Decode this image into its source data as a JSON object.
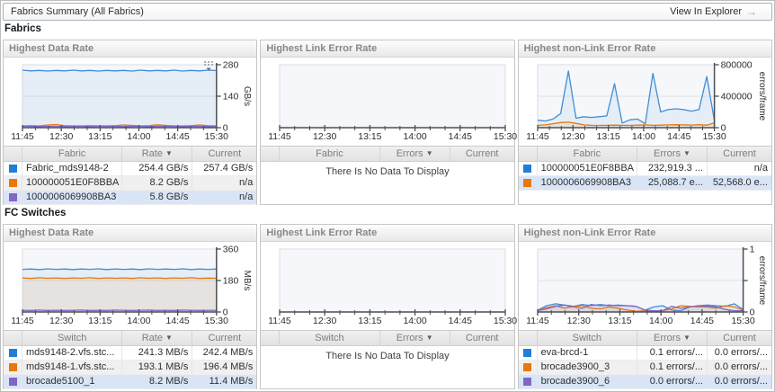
{
  "header": {
    "title": "Fabrics Summary (All Fabrics)",
    "action_label": "View In Explorer"
  },
  "icons": {
    "sort_desc": "▼",
    "explorer_arrow": "→"
  },
  "colors": {
    "blue": "#1f7fd6",
    "orange": "#e6780c",
    "purple": "#8166c6",
    "selected_row": "#d9e5f7"
  },
  "sections": [
    {
      "label": "Fabrics"
    },
    {
      "label": "FC Switches"
    }
  ],
  "panels": [
    {
      "title": "Highest Data Rate",
      "col_name": "Fabric",
      "col_value": "Rate",
      "col_current": "Current",
      "rows": [
        {
          "color": "#1f7fd6",
          "name": "Fabric_mds9148-2",
          "value": "254.4 GB/s",
          "current": "257.4 GB/s"
        },
        {
          "color": "#e6780c",
          "name": "100000051E0F8BBA",
          "value": "8.2 GB/s",
          "current": "n/a"
        },
        {
          "color": "#8166c6",
          "name": "1000006069908BA3",
          "value": "5.8 GB/s",
          "current": "n/a"
        }
      ]
    },
    {
      "title": "Highest Link Error Rate",
      "col_name": "Fabric",
      "col_value": "Errors",
      "col_current": "Current",
      "no_data": "There Is No Data To Display",
      "rows": []
    },
    {
      "title": "Highest non-Link Error Rate",
      "col_name": "Fabric",
      "col_value": "Errors",
      "col_current": "Current",
      "rows": [
        {
          "color": "#1f7fd6",
          "name": "100000051E0F8BBA",
          "value": "232,919.3 ...",
          "current": "n/a"
        },
        {
          "color": "#e6780c",
          "name": "1000006069908BA3",
          "value": "25,088.7 e...",
          "current": "52,568.0 e..."
        }
      ]
    },
    {
      "title": "Highest Data Rate",
      "col_name": "Switch",
      "col_value": "Rate",
      "col_current": "Current",
      "rows": [
        {
          "color": "#1f7fd6",
          "name": "mds9148-2.vfs.stc...",
          "value": "241.3 MB/s",
          "current": "242.4 MB/s"
        },
        {
          "color": "#e6780c",
          "name": "mds9148-1.vfs.stc...",
          "value": "193.1 MB/s",
          "current": "196.4 MB/s"
        },
        {
          "color": "#8166c6",
          "name": "brocade5100_1",
          "value": "8.2 MB/s",
          "current": "11.4 MB/s"
        }
      ]
    },
    {
      "title": "Highest Link Error Rate",
      "col_name": "Switch",
      "col_value": "Errors",
      "col_current": "Current",
      "no_data": "There Is No Data To Display",
      "rows": []
    },
    {
      "title": "Highest non-Link Error Rate",
      "col_name": "Switch",
      "col_value": "Errors",
      "col_current": "Current",
      "rows": [
        {
          "color": "#1f7fd6",
          "name": "eva-brcd-1",
          "value": "0.1 errors/...",
          "current": "0.0 errors/..."
        },
        {
          "color": "#e6780c",
          "name": "brocade3900_3",
          "value": "0.1 errors/...",
          "current": "0.0 errors/..."
        },
        {
          "color": "#8166c6",
          "name": "brocade3900_6",
          "value": "0.0 errors/...",
          "current": "0.0 errors/..."
        }
      ]
    }
  ],
  "chart_data": [
    {
      "type": "line",
      "title": "Highest Data Rate (Fabrics)",
      "x_labels": [
        "11:45",
        "12:30",
        "13:15",
        "14:00",
        "14:45",
        "15:30"
      ],
      "ylim": [
        0,
        280
      ],
      "yticks": [
        {
          "v": 0,
          "label": "0"
        },
        {
          "v": 140,
          "label": "140"
        },
        {
          "v": 280,
          "label": "280"
        }
      ],
      "ylabel": "GB/s",
      "grid": true,
      "legend": "table-below",
      "series": [
        {
          "name": "Fabric_mds9148-2",
          "color": "#3f8ed8",
          "values": [
            256,
            253,
            255,
            252,
            255,
            253,
            256,
            253,
            255,
            252,
            255,
            253,
            255,
            252,
            256,
            253,
            255,
            253,
            256,
            252,
            255,
            253,
            256,
            254
          ]
        },
        {
          "name": "100000051E0F8BBA",
          "color": "#e6780c",
          "values": [
            8,
            9,
            8,
            12,
            14,
            9,
            8,
            8,
            9,
            8,
            8,
            9,
            12,
            10,
            8,
            9,
            13,
            10,
            8,
            8,
            9,
            12,
            9,
            8
          ]
        },
        {
          "name": "1000006069908BA3",
          "color": "#8166c6",
          "values": [
            6,
            6,
            5,
            6,
            6,
            5,
            6,
            6,
            5,
            6,
            6,
            6,
            5,
            6,
            6,
            5,
            6,
            6,
            6,
            5,
            6,
            6,
            5,
            6
          ]
        }
      ]
    },
    {
      "type": "line",
      "title": "Highest Link Error Rate (Fabrics)",
      "x_labels": [
        "11:45",
        "12:30",
        "13:15",
        "14:00",
        "14:45",
        "15:30"
      ],
      "ylim": [
        0,
        1
      ],
      "yticks": [],
      "ylabel": "",
      "series": []
    },
    {
      "type": "line",
      "title": "Highest non-Link Error Rate (Fabrics)",
      "x_labels": [
        "11:45",
        "12:30",
        "13:15",
        "14:00",
        "14:45",
        "15:30"
      ],
      "ylim": [
        0,
        800000
      ],
      "yticks": [
        {
          "v": 0,
          "label": "0"
        },
        {
          "v": 400000,
          "label": "400000"
        },
        {
          "v": 800000,
          "label": "800000"
        }
      ],
      "ylabel": "errors/frame",
      "series": [
        {
          "name": "100000051E0F8BBA",
          "color": "#3f8ed8",
          "values": [
            95000,
            85000,
            110000,
            180000,
            720000,
            120000,
            140000,
            130000,
            140000,
            150000,
            560000,
            60000,
            100000,
            110000,
            50000,
            690000,
            200000,
            230000,
            240000,
            230000,
            210000,
            230000,
            650000,
            90000
          ]
        },
        {
          "name": "1000006069908BA3",
          "color": "#e6780c",
          "values": [
            30000,
            35000,
            50000,
            65000,
            70000,
            55000,
            35000,
            30000,
            28000,
            30000,
            32000,
            30000,
            28000,
            32000,
            35000,
            30000,
            32000,
            35000,
            38000,
            35000,
            33000,
            38000,
            32000,
            60000
          ]
        }
      ]
    },
    {
      "type": "line",
      "title": "Highest Data Rate (FC Switches)",
      "x_labels": [
        "11:45",
        "12:30",
        "13:15",
        "14:00",
        "14:45",
        "15:30"
      ],
      "ylim": [
        0,
        360
      ],
      "yticks": [
        {
          "v": 0,
          "label": "0"
        },
        {
          "v": 180,
          "label": "180"
        },
        {
          "v": 360,
          "label": "360"
        }
      ],
      "ylabel": "MB/s",
      "series": [
        {
          "name": "mds9148-2.vfs.stc...",
          "color": "#3f8ed8",
          "values": [
            244,
            246,
            243,
            247,
            244,
            246,
            243,
            246,
            244,
            247,
            243,
            246,
            244,
            246,
            243,
            247,
            244,
            246,
            244,
            247,
            243,
            246,
            244,
            246
          ]
        },
        {
          "name": "mds9148-1.vfs.stc...",
          "color": "#e6780c",
          "values": [
            195,
            192,
            196,
            193,
            195,
            192,
            195,
            193,
            196,
            192,
            195,
            193,
            195,
            192,
            196,
            193,
            195,
            192,
            195,
            193,
            196,
            192,
            194,
            193
          ]
        },
        {
          "name": "brocade5100_1",
          "color": "#8166c6",
          "values": [
            10,
            9,
            11,
            9,
            10,
            9,
            10,
            11,
            9,
            10,
            9,
            11,
            10,
            9,
            10,
            11,
            9,
            10,
            9,
            11,
            10,
            9,
            10,
            10
          ]
        }
      ]
    },
    {
      "type": "line",
      "title": "Highest Link Error Rate (FC Switches)",
      "x_labels": [
        "11:45",
        "12:30",
        "13:15",
        "14:00",
        "14:45",
        "15:30"
      ],
      "ylim": [
        0,
        1
      ],
      "yticks": [],
      "ylabel": "",
      "series": []
    },
    {
      "type": "line",
      "title": "Highest non-Link Error Rate (FC Switches)",
      "x_labels": [
        "11:45",
        "12:30",
        "13:15",
        "14:00",
        "14:45",
        "15:30"
      ],
      "ylim": [
        0,
        1
      ],
      "yticks": [
        {
          "v": 0,
          "label": "0"
        },
        {
          "v": 0.5,
          "label": ""
        },
        {
          "v": 1,
          "label": "1"
        }
      ],
      "ylabel": "errors/frame",
      "series": [
        {
          "name": "eva-brcd-1",
          "color": "#3f8ed8",
          "values": [
            0.03,
            0.1,
            0.13,
            0.11,
            0.09,
            0.12,
            0.1,
            0.12,
            0.1,
            0.11,
            0.1,
            0.09,
            0.03,
            0.08,
            0.1,
            0.03,
            0.02,
            0.08,
            0.1,
            0.11,
            0.1,
            0.09,
            0.13,
            0.04
          ]
        },
        {
          "name": "brocade3900_3",
          "color": "#e6780c",
          "values": [
            0.02,
            0.07,
            0.1,
            0.06,
            0.09,
            0.1,
            0.06,
            0.05,
            0.08,
            0.06,
            0.03,
            0.01,
            0.02,
            0.01,
            0.02,
            0.05,
            0.1,
            0.09,
            0.08,
            0.08,
            0.06,
            0.1,
            0.08,
            0.03
          ]
        },
        {
          "name": "brocade3900_6",
          "color": "#8166c6",
          "values": [
            0.02,
            0.05,
            0.09,
            0.11,
            0.08,
            0.06,
            0.12,
            0.1,
            0.11,
            0.1,
            0.1,
            0.09,
            0.03,
            0.02,
            0.02,
            0.09,
            0.06,
            0.08,
            0.1,
            0.09,
            0.08,
            0.04,
            0.02,
            0.02
          ]
        }
      ]
    }
  ]
}
